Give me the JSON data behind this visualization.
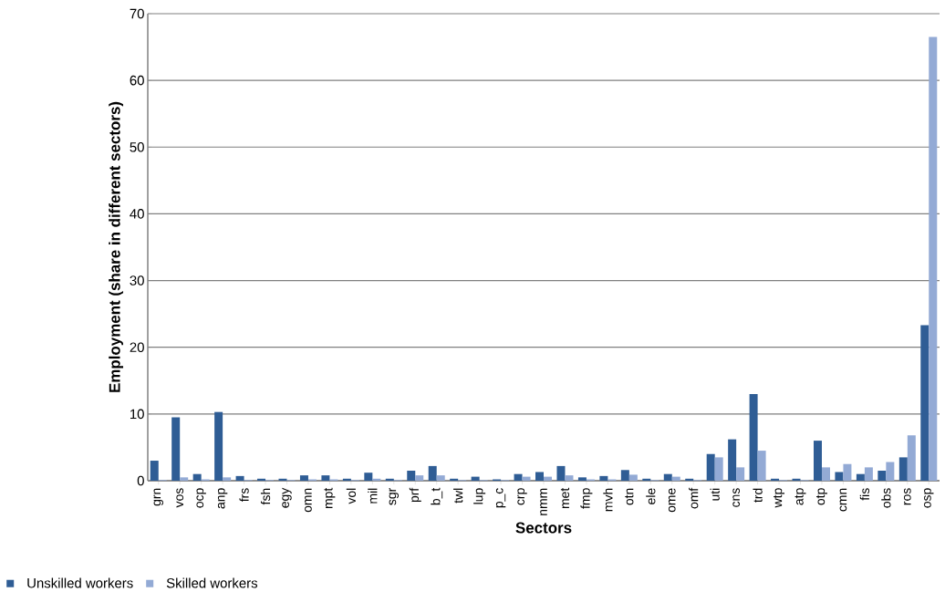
{
  "chart_data": {
    "type": "bar",
    "xlabel": "Sectors",
    "ylabel": "Employment (share in different sectors)",
    "categories": [
      "grn",
      "vos",
      "ocp",
      "anp",
      "frs",
      "fsh",
      "egy",
      "omn",
      "mpt",
      "vol",
      "mil",
      "sgr",
      "prf",
      "b_t",
      "twl",
      "lup",
      "p_c",
      "crp",
      "nmm",
      "met",
      "fmp",
      "mvh",
      "otn",
      "ele",
      "ome",
      "omf",
      "uti",
      "cns",
      "trd",
      "wtp",
      "atp",
      "otp",
      "cmn",
      "fis",
      "obs",
      "ros",
      "osp"
    ],
    "series": [
      {
        "name": "Unskilled workers",
        "color": "#2f5d95",
        "values": [
          3,
          9.5,
          1,
          10.3,
          0.7,
          0.3,
          0.3,
          0.8,
          0.8,
          0.3,
          1.2,
          0.3,
          1.5,
          2.2,
          0.3,
          0.6,
          0.2,
          1,
          1.3,
          2.2,
          0.5,
          0.7,
          1.6,
          0.3,
          1,
          0.3,
          4,
          6.2,
          13,
          0.3,
          0.3,
          6,
          1.3,
          1,
          1.5,
          3.5,
          23.3
        ]
      },
      {
        "name": "Skilled workers",
        "color": "#93aad5",
        "values": [
          0.1,
          0.5,
          0.2,
          0.5,
          0.1,
          0.1,
          0.1,
          0.2,
          0.2,
          0.1,
          0.3,
          0.1,
          0.8,
          0.8,
          0.1,
          0.1,
          0.1,
          0.6,
          0.6,
          0.8,
          0.2,
          0.2,
          0.9,
          0.1,
          0.6,
          0.1,
          3.5,
          2,
          4.5,
          0.1,
          0.1,
          2,
          2.5,
          2,
          2.8,
          6.8,
          66.5
        ]
      }
    ],
    "ylim": [
      0,
      70
    ],
    "yticks": [
      0,
      10,
      20,
      30,
      40,
      50,
      60,
      70
    ],
    "grid": "y",
    "legend": "bottom left"
  }
}
